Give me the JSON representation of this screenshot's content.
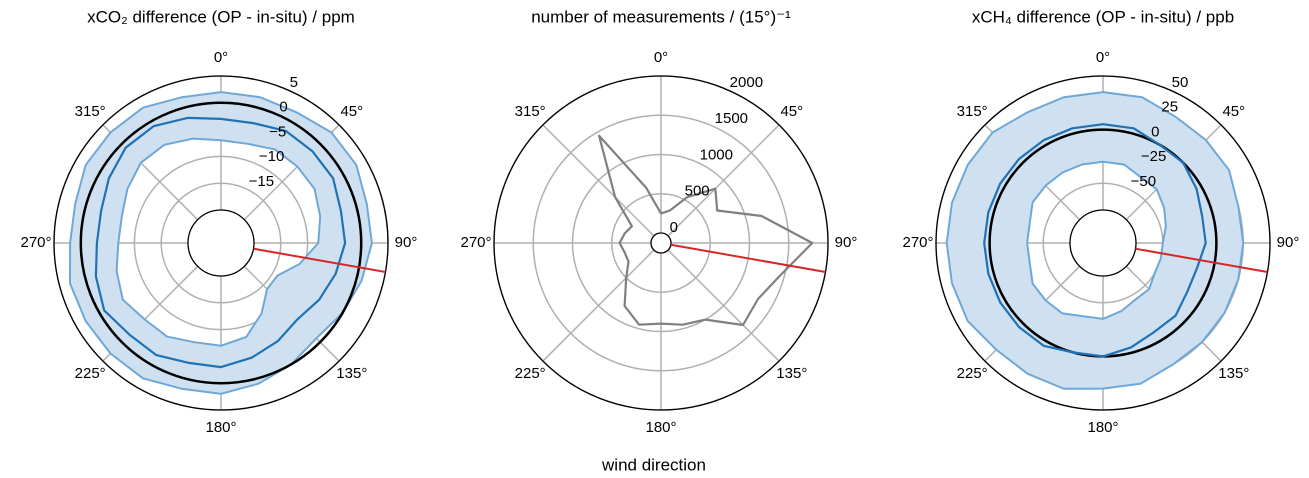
{
  "chart_data": [
    {
      "type": "polar",
      "title": "xCO₂ difference (OP - in-situ) / ppm",
      "theta": [
        0,
        15,
        30,
        45,
        60,
        75,
        90,
        105,
        120,
        135,
        150,
        165,
        180,
        195,
        210,
        225,
        240,
        255,
        270,
        285,
        300,
        315,
        330,
        345
      ],
      "theta_ticks": [
        {
          "value": 0,
          "label": "0°"
        },
        {
          "value": 45,
          "label": "45°"
        },
        {
          "value": 90,
          "label": "90°"
        },
        {
          "value": 135,
          "label": "135°"
        },
        {
          "value": 180,
          "label": "180°"
        },
        {
          "value": 225,
          "label": "225°"
        },
        {
          "value": 270,
          "label": "270°"
        },
        {
          "value": 315,
          "label": "315°"
        }
      ],
      "ylim": [
        -20,
        5
      ],
      "yticks": [
        {
          "value": -15,
          "label": "−15"
        },
        {
          "value": -10,
          "label": "−10"
        },
        {
          "value": -5,
          "label": "−5"
        },
        0,
        5
      ],
      "grid": true,
      "zero_line": 0,
      "marker_direction": 100,
      "marker_color": "#d62728",
      "band": {
        "color": "#cfe1f0",
        "edge_color": "#6fa8d6",
        "lower": [
          -7,
          -7,
          -6,
          -6,
          -6,
          -7,
          -8,
          -11,
          -14,
          -14,
          -11,
          -8,
          -7,
          -7,
          -6,
          -6,
          -5,
          -6,
          -7,
          -7,
          -6,
          -5,
          -5,
          -6
        ],
        "upper": [
          2,
          2,
          2,
          3,
          3,
          2,
          2,
          1,
          0,
          -1,
          0,
          1,
          2,
          2,
          3,
          3,
          3,
          3,
          2,
          2,
          3,
          3,
          3,
          2
        ]
      },
      "lines": [
        {
          "color": "#2171b5",
          "values": [
            -3,
            -3,
            -2,
            -2,
            -2,
            -3,
            -3,
            -4,
            -5,
            -6,
            -5,
            -4,
            -3,
            -3,
            -2,
            -2,
            -1,
            -2,
            -3,
            -3,
            -2,
            -1,
            -1,
            -2
          ]
        }
      ]
    },
    {
      "type": "polar",
      "title": "number of measurements / (15°)⁻¹",
      "theta": [
        0,
        15,
        30,
        45,
        60,
        75,
        90,
        105,
        120,
        135,
        150,
        165,
        180,
        195,
        210,
        225,
        240,
        255,
        270,
        285,
        300,
        315,
        330,
        345
      ],
      "theta_ticks": [
        {
          "value": 0,
          "label": "0°"
        },
        {
          "value": 45,
          "label": "45°"
        },
        {
          "value": 90,
          "label": "90°"
        },
        {
          "value": 135,
          "label": "135°"
        },
        {
          "value": 180,
          "label": "180°"
        },
        {
          "value": 225,
          "label": "225°"
        },
        {
          "value": 270,
          "label": "270°"
        },
        {
          "value": 315,
          "label": "315°"
        }
      ],
      "ylim": [
        0,
        2000
      ],
      "yticks": [
        0,
        500,
        1000,
        1500,
        2000
      ],
      "grid": true,
      "marker_direction": 100,
      "marker_color": "#d62728",
      "lines": [
        {
          "color": "#808080",
          "values": [
            250,
            300,
            550,
            850,
            700,
            1200,
            1800,
            1450,
            1300,
            1350,
            1000,
            950,
            900,
            950,
            800,
            500,
            350,
            350,
            400,
            350,
            300,
            700,
            1450,
            600
          ]
        }
      ]
    },
    {
      "type": "polar",
      "title": "xCH₄ difference (OP - in-situ) / ppb",
      "theta": [
        0,
        15,
        30,
        45,
        60,
        75,
        90,
        105,
        120,
        135,
        150,
        165,
        180,
        195,
        210,
        225,
        240,
        255,
        270,
        285,
        300,
        315,
        330,
        345
      ],
      "theta_ticks": [
        {
          "value": 0,
          "label": "0°"
        },
        {
          "value": 45,
          "label": "45°"
        },
        {
          "value": 90,
          "label": "90°"
        },
        {
          "value": 135,
          "label": "135°"
        },
        {
          "value": 180,
          "label": "180°"
        },
        {
          "value": 225,
          "label": "225°"
        },
        {
          "value": 270,
          "label": "270°"
        },
        {
          "value": 315,
          "label": "315°"
        }
      ],
      "ylim": [
        -75,
        50
      ],
      "yticks": [
        {
          "value": -50,
          "label": "−50"
        },
        {
          "value": -25,
          "label": "−25"
        },
        0,
        25,
        50
      ],
      "grid": true,
      "zero_line": 0,
      "marker_direction": 100,
      "marker_color": "#d62728",
      "band": {
        "color": "#cfe1f0",
        "edge_color": "#6fa8d6",
        "lower": [
          -30,
          -30,
          -35,
          -35,
          -40,
          -45,
          -50,
          -50,
          -50,
          -45,
          -45,
          -40,
          -35,
          -35,
          -30,
          -30,
          -30,
          -35,
          -35,
          -35,
          -30,
          -30,
          -30,
          -30
        ],
        "upper": [
          35,
          35,
          30,
          30,
          30,
          25,
          25,
          25,
          25,
          25,
          25,
          30,
          30,
          35,
          35,
          35,
          40,
          40,
          40,
          40,
          40,
          40,
          35,
          35
        ]
      },
      "lines": [
        {
          "color": "#2171b5",
          "values": [
            5,
            5,
            0,
            0,
            -5,
            -10,
            -10,
            -15,
            -15,
            -10,
            -10,
            -5,
            0,
            0,
            5,
            5,
            5,
            5,
            5,
            5,
            5,
            5,
            5,
            5
          ]
        }
      ]
    }
  ],
  "figure_xlabel": "wind direction"
}
